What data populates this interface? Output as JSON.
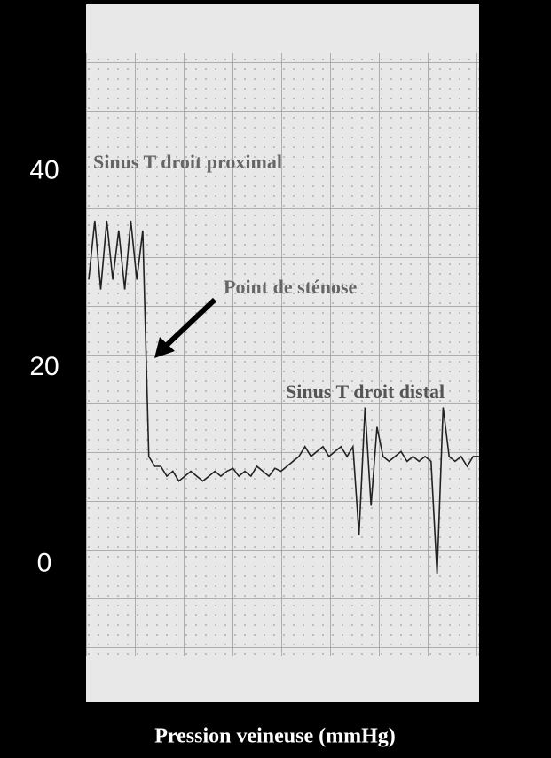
{
  "chart_data": {
    "type": "line",
    "y_label": "Pression veineuse (mmHg)",
    "annotations": [
      "Sinus T droit proximal",
      "Point de sténose",
      "Sinus T droit distal"
    ],
    "ylim": [
      -14,
      57
    ],
    "yticks": [
      0,
      20,
      40
    ],
    "color": "#222222",
    "values": [
      29,
      35,
      28,
      35,
      29,
      34,
      28,
      35,
      29,
      34,
      11,
      10,
      10,
      9,
      9.5,
      8.5,
      9,
      9.5,
      9,
      8.5,
      9,
      9.5,
      9,
      9.5,
      9.8,
      9,
      9.5,
      9,
      10,
      9.5,
      9,
      9.8,
      9.5,
      10,
      10.5,
      11,
      12,
      11,
      11.5,
      12,
      11,
      11.5,
      12,
      11,
      12,
      3,
      16,
      6,
      14,
      11,
      10.5,
      11,
      11.5,
      10.5,
      11,
      10.5,
      11,
      10.5,
      -1,
      16,
      11,
      10.5,
      11,
      10,
      11,
      11
    ]
  }
}
